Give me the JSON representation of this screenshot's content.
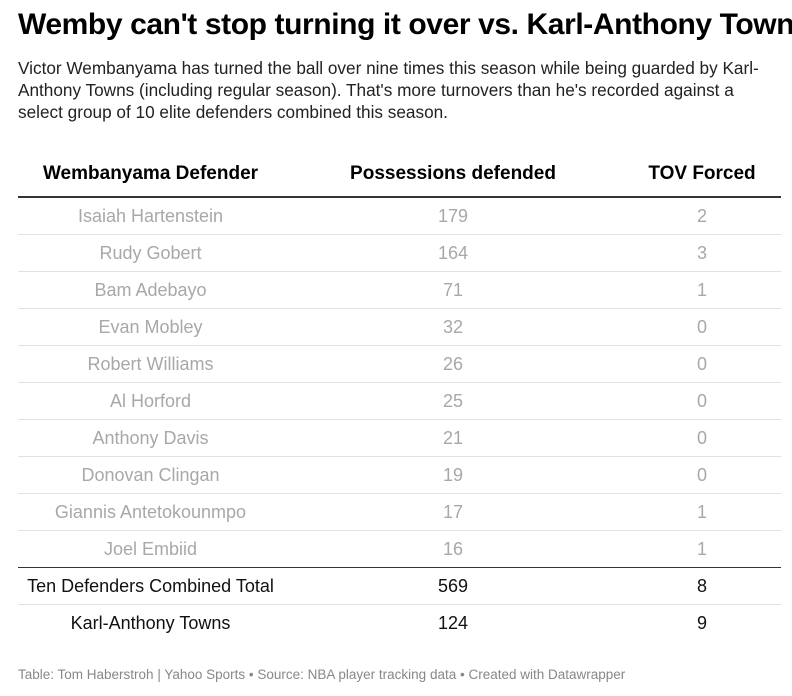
{
  "title": "Wemby can't stop turning it over vs. Karl-Anthony Towns",
  "subtitle": "Victor Wembanyama has turned the ball over nine times this season while being guarded by Karl-Anthony Towns (including regular season). That's more turnovers than he's recorded against a select group of 10 elite defenders combined this season.",
  "chart_data": {
    "type": "table",
    "columns": [
      "Wembanyama Defender",
      "Possessions defended",
      "TOV Forced"
    ],
    "rows": [
      [
        "Isaiah Hartenstein",
        "179",
        "2"
      ],
      [
        "Rudy Gobert",
        "164",
        "3"
      ],
      [
        "Bam Adebayo",
        "71",
        "1"
      ],
      [
        "Evan Mobley",
        "32",
        "0"
      ],
      [
        "Robert Williams",
        "26",
        "0"
      ],
      [
        "Al Horford",
        "25",
        "0"
      ],
      [
        "Anthony Davis",
        "21",
        "0"
      ],
      [
        "Donovan Clingan",
        "19",
        "0"
      ],
      [
        "Giannis Antetokounmpo",
        "17",
        "1"
      ],
      [
        "Joel Embiid",
        "16",
        "1"
      ]
    ],
    "summary_rows": [
      [
        "Ten Defenders Combined Total",
        "569",
        "8"
      ],
      [
        "Karl-Anthony Towns",
        "124",
        "9"
      ]
    ],
    "colors": {
      "muted_text": "#a8a8a8",
      "strong_text": "#111111",
      "rule": "#333333",
      "row_divider": "#e2e2e2"
    }
  },
  "footer": "Table: Tom Haberstroh | Yahoo Sports • Source: NBA player tracking data • Created with Datawrapper"
}
